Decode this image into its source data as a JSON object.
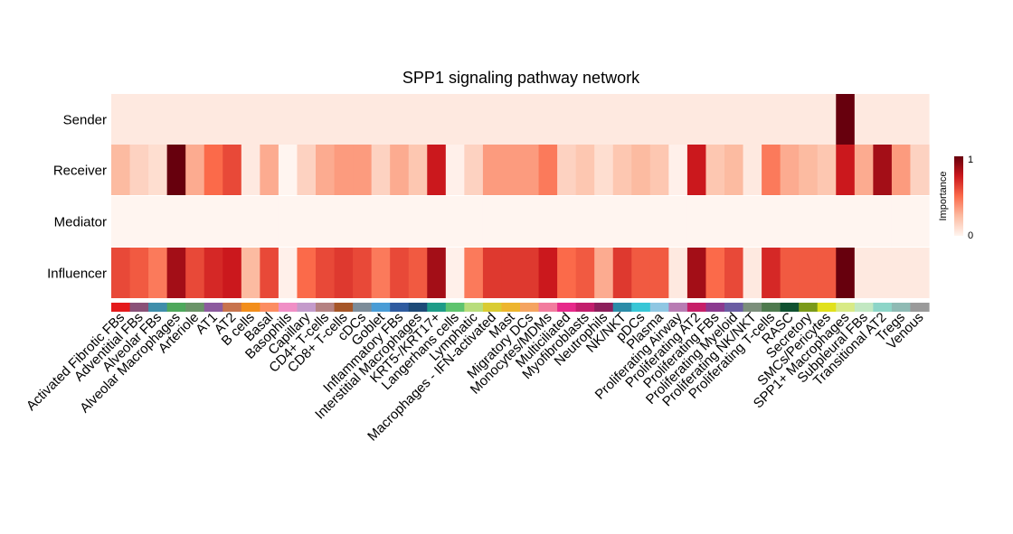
{
  "chart_data": {
    "type": "heatmap",
    "title": "SPP1 signaling pathway network",
    "xlabel": "",
    "ylabel": "",
    "rows": [
      "Sender",
      "Receiver",
      "Mediator",
      "Influencer"
    ],
    "columns": [
      "Activated Fibrotic FBs",
      "Adventitial FBs",
      "Alveolar FBs",
      "Alveolar Macrophages",
      "Arteriole",
      "AT1",
      "AT2",
      "B cells",
      "Basal",
      "Basophils",
      "Capillary",
      "CD4+ T-cells",
      "CD8+ T-cells",
      "cDCs",
      "Goblet",
      "Inflammatory FBs",
      "Interstitial Macrophages",
      "KRT5-/KRT17+",
      "Langerhans cells",
      "Lymphatic",
      "Macrophages - IFN-activated",
      "Mast",
      "Migratory DCs",
      "Monocytes/MDMs",
      "Multiciliated",
      "Myofibroblasts",
      "Neutrophils",
      "NK/NKT",
      "pDCs",
      "Plasma",
      "Proliferating Airway",
      "Proliferating AT2",
      "Proliferating FBs",
      "Proliferating Myeloid",
      "Proliferating NK/NKT",
      "Proliferating T-cells",
      "RASC",
      "Secretory",
      "SMCs/Pericytes",
      "SPP1+ Macrophages",
      "Subpleural FBs",
      "Transitional AT2",
      "Tregs",
      "Venous"
    ],
    "values": [
      [
        0.05,
        0.05,
        0.05,
        0.05,
        0.05,
        0.05,
        0.05,
        0.05,
        0.05,
        0.05,
        0.05,
        0.05,
        0.05,
        0.05,
        0.05,
        0.05,
        0.05,
        0.05,
        0.05,
        0.05,
        0.05,
        0.05,
        0.05,
        0.05,
        0.05,
        0.05,
        0.05,
        0.05,
        0.05,
        0.05,
        0.05,
        0.05,
        0.05,
        0.05,
        0.05,
        0.05,
        0.05,
        0.05,
        0.05,
        1.0,
        0.05,
        0.05,
        0.05,
        0.05
      ],
      [
        0.25,
        0.15,
        0.1,
        1.0,
        0.3,
        0.5,
        0.6,
        0.05,
        0.3,
        0.0,
        0.15,
        0.3,
        0.35,
        0.35,
        0.15,
        0.3,
        0.2,
        0.75,
        0.02,
        0.15,
        0.35,
        0.35,
        0.35,
        0.45,
        0.15,
        0.2,
        0.1,
        0.2,
        0.25,
        0.2,
        0.02,
        0.75,
        0.2,
        0.25,
        0.05,
        0.45,
        0.3,
        0.25,
        0.2,
        0.75,
        0.3,
        0.85,
        0.35,
        0.15
      ],
      [
        0,
        0,
        0,
        0,
        0,
        0,
        0,
        0,
        0,
        0,
        0,
        0,
        0,
        0,
        0,
        0,
        0,
        0,
        0,
        0,
        0,
        0,
        0,
        0,
        0,
        0,
        0,
        0,
        0,
        0,
        0,
        0,
        0,
        0,
        0,
        0,
        0,
        0,
        0,
        0,
        0,
        0,
        0,
        0
      ],
      [
        0.6,
        0.55,
        0.45,
        0.85,
        0.6,
        0.7,
        0.75,
        0.25,
        0.6,
        0.02,
        0.5,
        0.6,
        0.65,
        0.6,
        0.45,
        0.6,
        0.55,
        0.85,
        0.02,
        0.45,
        0.65,
        0.65,
        0.65,
        0.75,
        0.5,
        0.55,
        0.3,
        0.65,
        0.55,
        0.55,
        0.05,
        0.85,
        0.5,
        0.6,
        0.05,
        0.7,
        0.55,
        0.55,
        0.55,
        1.0,
        0.05,
        0.05,
        0.05,
        0.05
      ]
    ],
    "colors": [
      "#E41A1C",
      "#8A5178",
      "#3F8EAA",
      "#4EA85C",
      "#6A9468",
      "#8C5B9E",
      "#C8734D",
      "#F28E1C",
      "#FC8D62",
      "#F08FC6",
      "#C49BCB",
      "#B58282",
      "#A65628",
      "#7C8C99",
      "#4A9CD6",
      "#2F5B9F",
      "#1D4A77",
      "#1E9C88",
      "#5EC46F",
      "#B8DD7C",
      "#D9CC33",
      "#EDB52E",
      "#F5A461",
      "#F27C9E",
      "#E7298A",
      "#C21E6C",
      "#8C1F5B",
      "#2B8CA8",
      "#38C6D6",
      "#8FC7E3",
      "#B87CB3",
      "#C71F68",
      "#8B3A8F",
      "#6A5DA3",
      "#7B8F7B",
      "#4E7A4E",
      "#0F5130",
      "#7A9A1A",
      "#E1E11C",
      "#D8EA86",
      "#C2E8C2",
      "#8DD5C8",
      "#8FBAB4",
      "#9A9A9A"
    ],
    "legend": {
      "title": "Importance",
      "min_label": "0",
      "max_label": "1",
      "position": "right"
    },
    "colormap": [
      "#FFF5F0",
      "#FCBBA1",
      "#FB6A4A",
      "#CB181D",
      "#67000D"
    ]
  }
}
